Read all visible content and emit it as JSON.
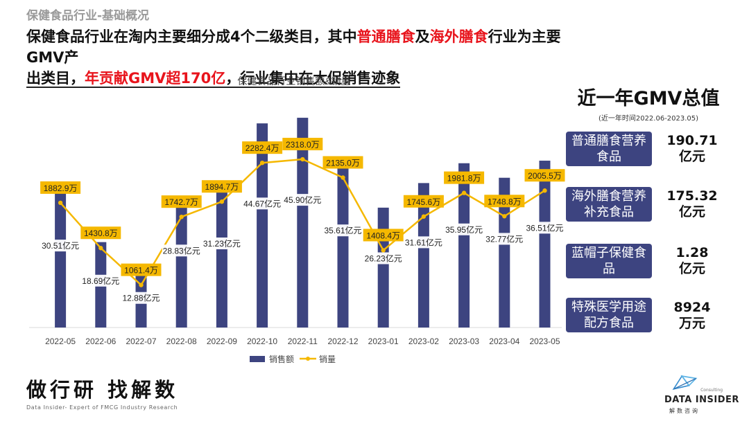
{
  "section_tag": "保健食品行业-基础概况",
  "headline": {
    "part1": "保健食品行业在淘内主要细分成4个二级类目，其中",
    "hl1": "普通膳食",
    "part2": "及",
    "hl2": "海外膳食",
    "part3": "行业为主要GMV产",
    "part4": "出类目，",
    "hl3": "年贡献GMV超170亿",
    "part5": "，行业集中在大促销售迹象"
  },
  "chart_data": {
    "type": "bar",
    "title": "保健食品行业销售额&销量",
    "categories": [
      "2022-05",
      "2022-06",
      "2022-07",
      "2022-08",
      "2022-09",
      "2022-10",
      "2022-11",
      "2022-12",
      "2023-01",
      "2023-02",
      "2023-03",
      "2023-04",
      "2023-05"
    ],
    "series": [
      {
        "name": "销售额",
        "type": "bar",
        "unit": "亿元",
        "color": "#3d4480",
        "values": [
          30.51,
          18.69,
          12.88,
          28.83,
          31.23,
          44.67,
          45.9,
          35.61,
          26.23,
          31.61,
          35.95,
          32.77,
          36.51
        ],
        "labels": [
          "30.51亿元",
          "18.69亿元",
          "12.88亿元",
          "28.83亿元",
          "31.23亿元",
          "44.67亿元",
          "45.90亿元",
          "35.61亿元",
          "26.23亿元",
          "31.61亿元",
          "35.95亿元",
          "32.77亿元",
          "36.51亿元"
        ]
      },
      {
        "name": "销量",
        "type": "line",
        "unit": "万",
        "color": "#f5b800",
        "values": [
          1882.9,
          1430.8,
          1061.4,
          1742.7,
          1894.7,
          2282.4,
          2318.0,
          2135.0,
          1408.4,
          1745.6,
          1981.8,
          1748.8,
          2005.5
        ],
        "labels": [
          "1882.9万",
          "1430.8万",
          "1061.4万",
          "1742.7万",
          "1894.7万",
          "2282.4万",
          "2318.0万",
          "2135.0万",
          "1408.4万",
          "1745.6万",
          "1981.8万",
          "1748.8万",
          "2005.5万"
        ]
      }
    ],
    "legend": [
      "销售额",
      "销量"
    ],
    "legend_position": "bottom",
    "grid": false
  },
  "side": {
    "title": "近一年GMV总值",
    "subtitle": "(近一年时间2022.06-2023.05)",
    "categories": [
      {
        "name": "普通膳食营养食品",
        "value_line1": "190.71",
        "value_line2": "亿元"
      },
      {
        "name": "海外膳食营养补充食品",
        "value_line1": "175.32",
        "value_line2": "亿元"
      },
      {
        "name": "蓝帽子保健食品",
        "value_line1": "1.28",
        "value_line2": "亿元"
      },
      {
        "name": "特殊医学用途配方食品",
        "value_line1": "8924",
        "value_line2": "万元"
      }
    ],
    "box_color": "#3d4480"
  },
  "footer": {
    "slogan": "做行研 找解数",
    "tagline": "Data Insider- Expert of FMCG Industry Research",
    "logo_consulting": "Consulting",
    "logo_name": "DATA INSIDER",
    "logo_cn": "解数咨询"
  }
}
